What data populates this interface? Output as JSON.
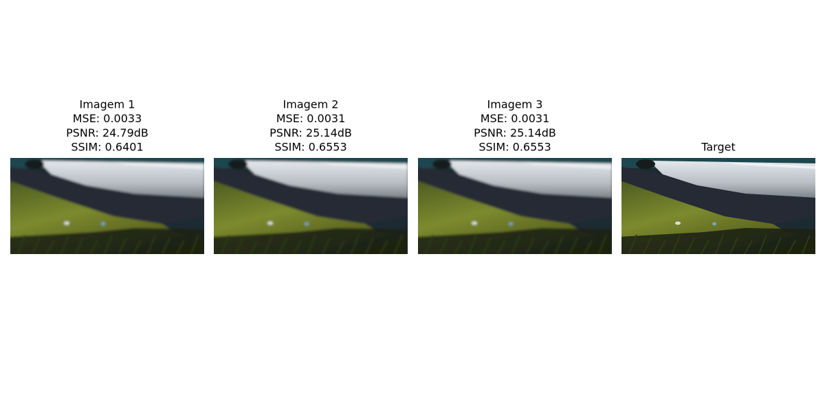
{
  "panels": [
    {
      "title_lines": [
        "Imagem 1",
        "MSE: 0.0033",
        "PSNR: 24.79dB",
        "SSIM: 0.6401"
      ]
    },
    {
      "title_lines": [
        "Imagem 2",
        "MSE: 0.0031",
        "PSNR: 25.14dB",
        "SSIM: 0.6553"
      ]
    },
    {
      "title_lines": [
        "Imagem 3",
        "MSE: 0.0031",
        "PSNR: 25.14dB",
        "SSIM: 0.6553"
      ]
    },
    {
      "title_lines": [
        "Target"
      ]
    }
  ]
}
